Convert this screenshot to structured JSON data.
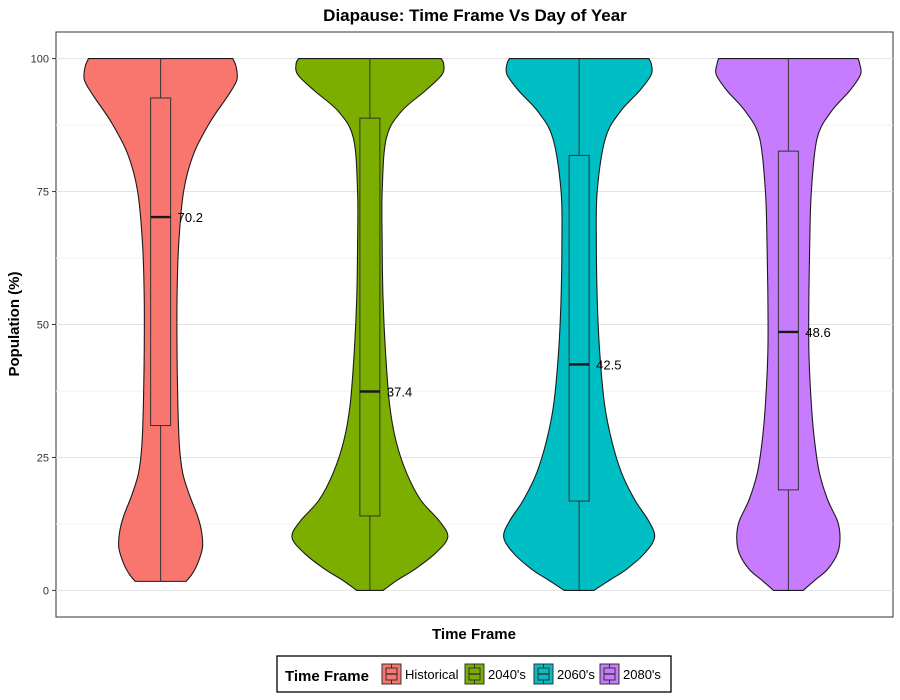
{
  "chart_data": {
    "type": "violin",
    "title": "Diapause: Time Frame Vs Day of Year",
    "xlabel": "Time Frame",
    "ylabel": "Population (%)",
    "ylim": [
      -5,
      105
    ],
    "yticks": [
      0,
      25,
      50,
      75,
      100
    ],
    "grid": true,
    "legend": {
      "title": "Time Frame",
      "placement": "bottom"
    },
    "series": [
      {
        "name": "Historical",
        "color": "#F8766D",
        "median": 70.2,
        "median_label": "70.2",
        "q1": 31,
        "q3": 92.6,
        "min": 1.7,
        "max": 100,
        "density": [
          [
            1.7,
            0.31
          ],
          [
            3,
            0.38
          ],
          [
            5,
            0.45
          ],
          [
            8,
            0.51
          ],
          [
            11,
            0.5
          ],
          [
            14,
            0.45
          ],
          [
            18,
            0.35
          ],
          [
            22,
            0.27
          ],
          [
            27,
            0.23
          ],
          [
            35,
            0.21
          ],
          [
            45,
            0.2
          ],
          [
            55,
            0.2
          ],
          [
            65,
            0.22
          ],
          [
            75,
            0.28
          ],
          [
            82,
            0.4
          ],
          [
            88,
            0.6
          ],
          [
            93,
            0.82
          ],
          [
            96,
            0.93
          ],
          [
            98.5,
            0.92
          ],
          [
            100,
            0.88
          ]
        ]
      },
      {
        "name": "2040's",
        "color": "#7CAE00",
        "median": 37.4,
        "median_label": "37.4",
        "q1": 14,
        "q3": 88.8,
        "min": 0,
        "max": 100,
        "density": [
          [
            0,
            0.16
          ],
          [
            2,
            0.34
          ],
          [
            4,
            0.55
          ],
          [
            7,
            0.8
          ],
          [
            10,
            0.95
          ],
          [
            13,
            0.85
          ],
          [
            17,
            0.62
          ],
          [
            22,
            0.45
          ],
          [
            28,
            0.32
          ],
          [
            35,
            0.24
          ],
          [
            45,
            0.19
          ],
          [
            55,
            0.16
          ],
          [
            65,
            0.15
          ],
          [
            75,
            0.15
          ],
          [
            85,
            0.2
          ],
          [
            90,
            0.38
          ],
          [
            94,
            0.68
          ],
          [
            97,
            0.88
          ],
          [
            99,
            0.9
          ],
          [
            100,
            0.87
          ]
        ]
      },
      {
        "name": "2060's",
        "color": "#00BFC4",
        "median": 42.5,
        "median_label": "42.5",
        "q1": 16.8,
        "q3": 81.8,
        "min": 0,
        "max": 100,
        "density": [
          [
            0,
            0.18
          ],
          [
            2,
            0.38
          ],
          [
            4,
            0.58
          ],
          [
            7,
            0.8
          ],
          [
            10,
            0.92
          ],
          [
            13,
            0.85
          ],
          [
            17,
            0.68
          ],
          [
            22,
            0.52
          ],
          [
            28,
            0.4
          ],
          [
            35,
            0.31
          ],
          [
            45,
            0.25
          ],
          [
            55,
            0.22
          ],
          [
            65,
            0.21
          ],
          [
            75,
            0.22
          ],
          [
            85,
            0.32
          ],
          [
            90,
            0.5
          ],
          [
            94,
            0.74
          ],
          [
            97,
            0.88
          ],
          [
            99,
            0.88
          ],
          [
            100,
            0.85
          ]
        ]
      },
      {
        "name": "2080's",
        "color": "#C77CFF",
        "median": 48.6,
        "median_label": "48.6",
        "q1": 18.9,
        "q3": 82.6,
        "min": 0,
        "max": 100,
        "density": [
          [
            0,
            0.18
          ],
          [
            2,
            0.33
          ],
          [
            4,
            0.48
          ],
          [
            7,
            0.6
          ],
          [
            10,
            0.63
          ],
          [
            13,
            0.6
          ],
          [
            17,
            0.48
          ],
          [
            22,
            0.38
          ],
          [
            28,
            0.32
          ],
          [
            35,
            0.28
          ],
          [
            45,
            0.25
          ],
          [
            55,
            0.25
          ],
          [
            65,
            0.26
          ],
          [
            75,
            0.28
          ],
          [
            85,
            0.35
          ],
          [
            90,
            0.52
          ],
          [
            94,
            0.75
          ],
          [
            97,
            0.88
          ],
          [
            99,
            0.87
          ],
          [
            100,
            0.85
          ]
        ]
      }
    ]
  }
}
